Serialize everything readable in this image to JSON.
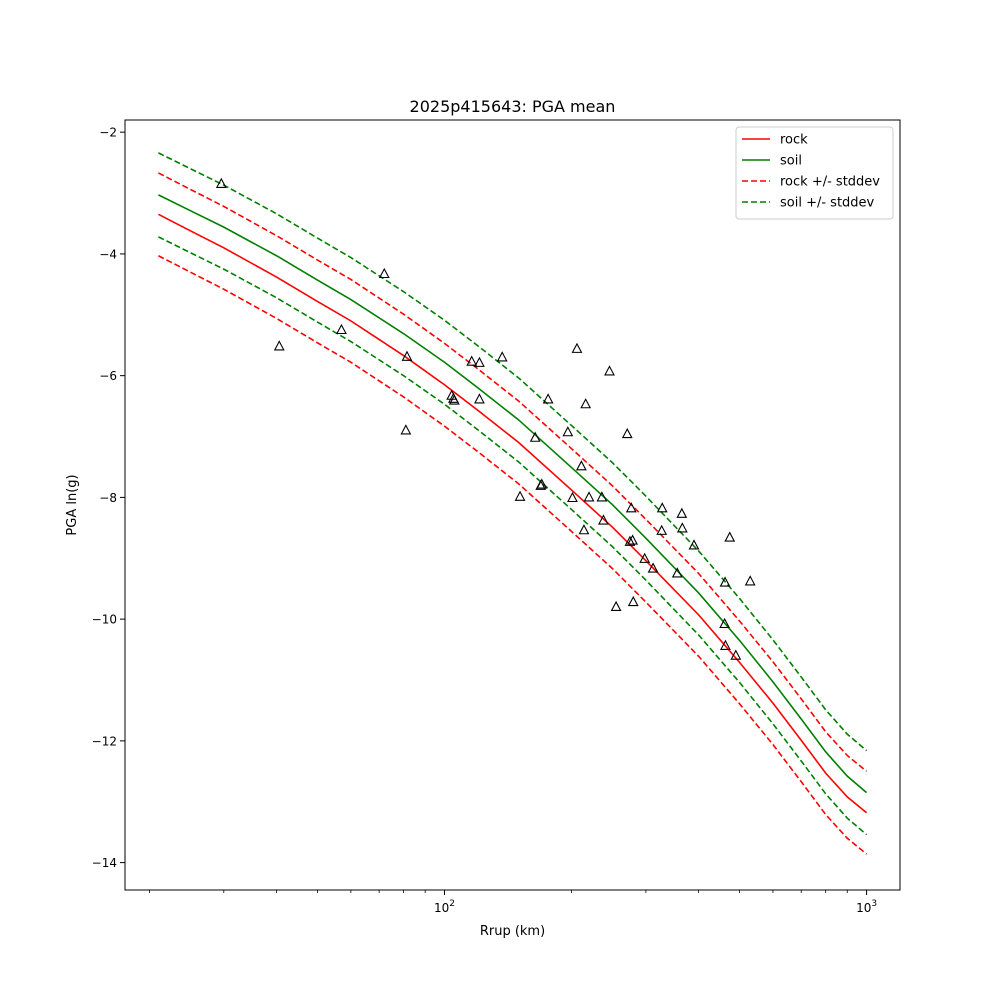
{
  "chart_data": {
    "type": "line",
    "title": "2025p415643: PGA mean",
    "xlabel": "Rrup (km)",
    "ylabel": "PGA ln(g)",
    "xscale": "log",
    "xlim": [
      17.5,
      1200
    ],
    "ylim": [
      -14.45,
      -1.8
    ],
    "grid": false,
    "legend_position": "top-right",
    "x_ticks": [
      {
        "value": 100,
        "base": "10",
        "exp": "2"
      },
      {
        "value": 1000,
        "base": "10",
        "exp": "3"
      }
    ],
    "y_ticks": [
      -2,
      -4,
      -6,
      -8,
      -10,
      -12,
      -14
    ],
    "y_tick_labels": [
      "−2",
      "−4",
      "−6",
      "−8",
      "−10",
      "−12",
      "−14"
    ],
    "x": [
      21,
      25,
      30,
      40,
      50,
      60,
      80,
      100,
      120,
      150,
      200,
      250,
      300,
      400,
      500,
      600,
      700,
      800,
      900,
      1000
    ],
    "series": [
      {
        "name": "rock",
        "color": "#ff0000",
        "style": "solid",
        "values": [
          -3.35,
          -3.62,
          -3.9,
          -4.38,
          -4.78,
          -5.1,
          -5.67,
          -6.15,
          -6.57,
          -7.1,
          -7.88,
          -8.49,
          -9.04,
          -9.93,
          -10.71,
          -11.38,
          -11.99,
          -12.53,
          -12.92,
          -13.18
        ]
      },
      {
        "name": "soil",
        "color": "#008000",
        "style": "solid",
        "values": [
          -3.03,
          -3.29,
          -3.56,
          -4.03,
          -4.43,
          -4.75,
          -5.31,
          -5.78,
          -6.2,
          -6.73,
          -7.51,
          -8.12,
          -8.67,
          -9.57,
          -10.35,
          -11.03,
          -11.64,
          -12.18,
          -12.58,
          -12.85
        ]
      },
      {
        "name": "rock +/- stddev",
        "color": "#ff0000",
        "style": "dashed",
        "band": "upper",
        "values": [
          -2.67,
          -2.94,
          -3.22,
          -3.7,
          -4.1,
          -4.42,
          -4.99,
          -5.47,
          -5.89,
          -6.42,
          -7.2,
          -7.81,
          -8.36,
          -9.25,
          -10.03,
          -10.7,
          -11.31,
          -11.85,
          -12.24,
          -12.5
        ]
      },
      {
        "name": "",
        "color": "#ff0000",
        "style": "dashed",
        "band": "lower",
        "values": [
          -4.03,
          -4.3,
          -4.58,
          -5.06,
          -5.46,
          -5.78,
          -6.35,
          -6.83,
          -7.25,
          -7.78,
          -8.56,
          -9.17,
          -9.72,
          -10.61,
          -11.39,
          -12.06,
          -12.67,
          -13.21,
          -13.6,
          -13.86
        ]
      },
      {
        "name": "soil +/- stddev",
        "color": "#008000",
        "style": "dashed",
        "band": "upper",
        "values": [
          -2.34,
          -2.6,
          -2.87,
          -3.34,
          -3.74,
          -4.06,
          -4.62,
          -5.09,
          -5.51,
          -6.04,
          -6.82,
          -7.43,
          -7.98,
          -8.88,
          -9.66,
          -10.34,
          -10.95,
          -11.49,
          -11.89,
          -12.16
        ]
      },
      {
        "name": "",
        "color": "#008000",
        "style": "dashed",
        "band": "lower",
        "values": [
          -3.72,
          -3.98,
          -4.25,
          -4.72,
          -5.12,
          -5.44,
          -6.0,
          -6.47,
          -6.89,
          -7.42,
          -8.2,
          -8.81,
          -9.36,
          -10.26,
          -11.04,
          -11.72,
          -12.33,
          -12.87,
          -13.27,
          -13.54
        ]
      }
    ],
    "observations": {
      "marker": "triangle-open",
      "color": "#000000",
      "points": [
        [
          29.6,
          -2.85
        ],
        [
          40.6,
          -5.52
        ],
        [
          57,
          -5.25
        ],
        [
          72,
          -4.33
        ],
        [
          81.5,
          -5.69
        ],
        [
          81,
          -6.9
        ],
        [
          104,
          -6.33
        ],
        [
          105,
          -6.38
        ],
        [
          105.5,
          -6.41
        ],
        [
          116,
          -5.77
        ],
        [
          121,
          -5.79
        ],
        [
          121,
          -6.39
        ],
        [
          137,
          -5.7
        ],
        [
          151,
          -7.99
        ],
        [
          164,
          -7.02
        ],
        [
          169,
          -7.81
        ],
        [
          170,
          -7.79
        ],
        [
          176,
          -6.39
        ],
        [
          196,
          -6.93
        ],
        [
          201,
          -8.01
        ],
        [
          206,
          -5.56
        ],
        [
          211,
          -7.49
        ],
        [
          214,
          -8.54
        ],
        [
          216,
          -6.47
        ],
        [
          220,
          -8.0
        ],
        [
          236,
          -8.0
        ],
        [
          238,
          -8.38
        ],
        [
          246,
          -5.93
        ],
        [
          255,
          -9.8
        ],
        [
          271,
          -6.96
        ],
        [
          275,
          -8.73
        ],
        [
          277,
          -8.18
        ],
        [
          279,
          -8.71
        ],
        [
          280,
          -9.72
        ],
        [
          298,
          -9.01
        ],
        [
          312,
          -9.17
        ],
        [
          327,
          -8.55
        ],
        [
          328,
          -8.18
        ],
        [
          356,
          -9.25
        ],
        [
          365,
          -8.27
        ],
        [
          366,
          -8.51
        ],
        [
          390,
          -8.79
        ],
        [
          461,
          -10.08
        ],
        [
          462,
          -9.4
        ],
        [
          463,
          -10.44
        ],
        [
          474,
          -8.66
        ],
        [
          490,
          -10.6
        ],
        [
          530,
          -9.38
        ]
      ]
    }
  }
}
